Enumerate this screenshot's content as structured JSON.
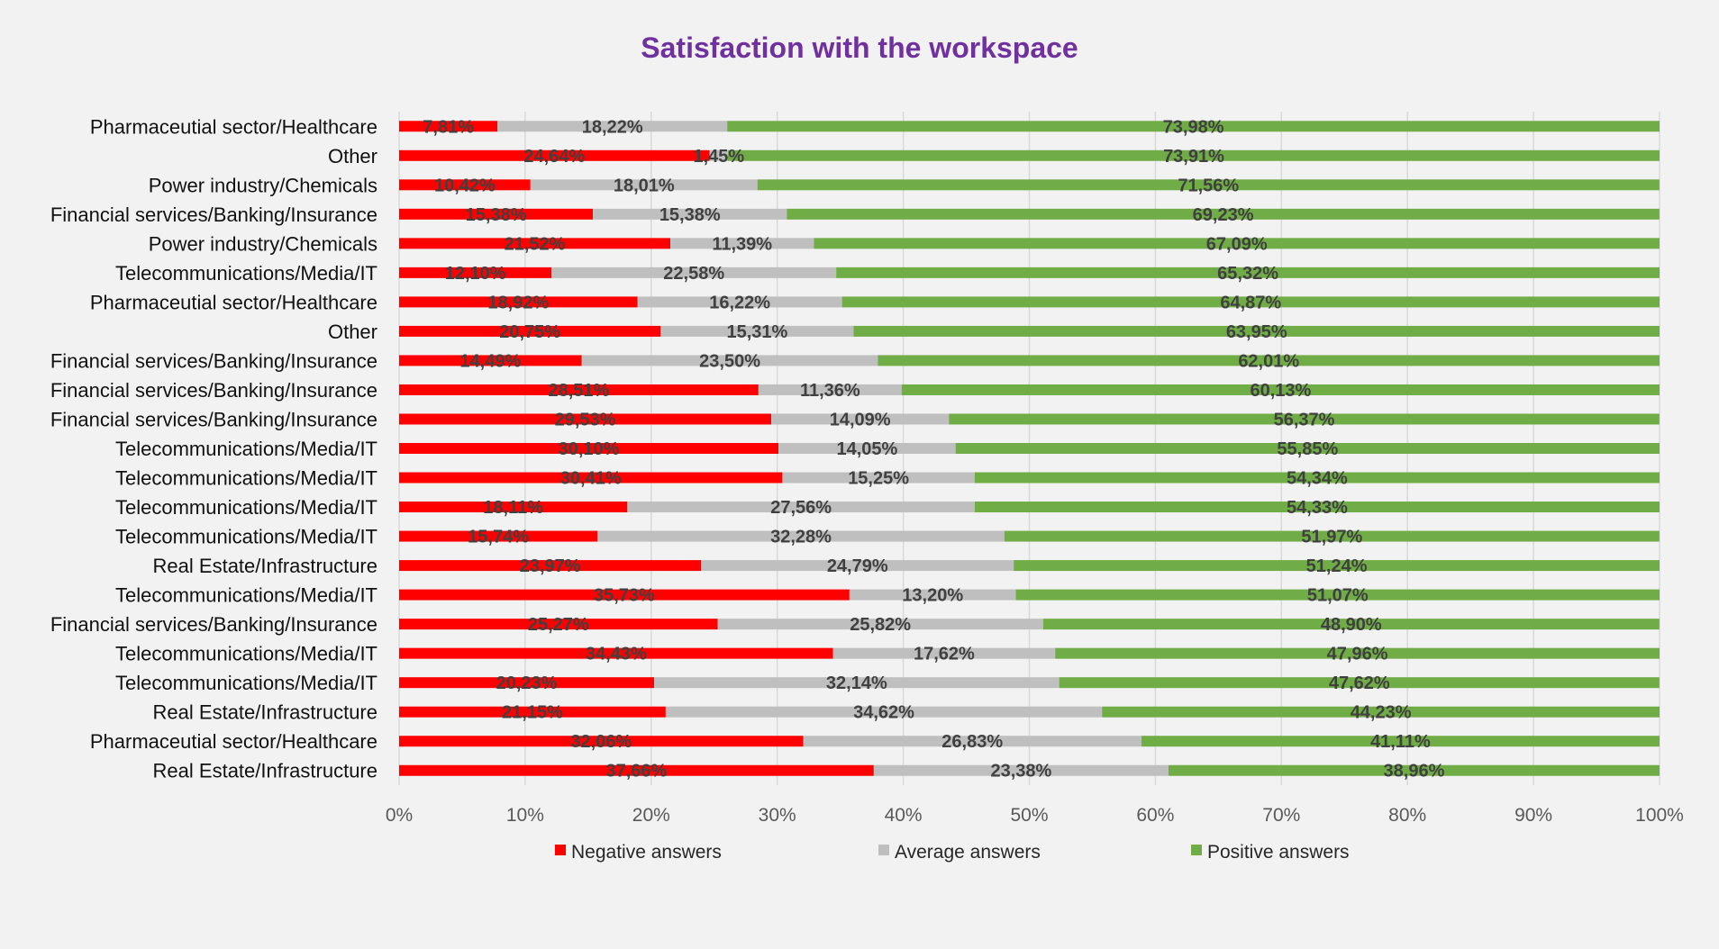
{
  "chart_data": {
    "type": "bar",
    "orientation": "horizontal",
    "stacked": "percent",
    "title": "Satisfaction with the workspace",
    "categories": [
      "Pharmaceutial sector/Healthcare",
      "Other",
      "Power industry/Chemicals",
      "Financial services/Banking/Insurance",
      "Power industry/Chemicals",
      "Telecommunications/Media/IT",
      "Pharmaceutial sector/Healthcare",
      "Other",
      "Financial services/Banking/Insurance",
      "Financial services/Banking/Insurance",
      "Financial services/Banking/Insurance",
      "Telecommunications/Media/IT",
      "Telecommunications/Media/IT",
      "Telecommunications/Media/IT",
      "Telecommunications/Media/IT",
      "Real Estate/Infrastructure",
      "Telecommunications/Media/IT",
      "Financial services/Banking/Insurance",
      "Telecommunications/Media/IT",
      "Telecommunications/Media/IT",
      "Real Estate/Infrastructure",
      "Pharmaceutial sector/Healthcare",
      "Real Estate/Infrastructure"
    ],
    "series": [
      {
        "name": "Negative answers",
        "color": "#ff0000",
        "values": [
          7.81,
          24.64,
          10.42,
          15.38,
          21.52,
          12.1,
          18.92,
          20.75,
          14.49,
          28.51,
          29.53,
          30.1,
          30.41,
          18.11,
          15.74,
          23.97,
          35.73,
          25.27,
          34.43,
          20.23,
          21.15,
          32.06,
          37.66
        ],
        "labels": [
          "7,81%",
          "24,64%",
          "10,42%",
          "15,38%",
          "21,52%",
          "12,10%",
          "18,92%",
          "20,75%",
          "14,49%",
          "28,51%",
          "29,53%",
          "30,10%",
          "30,41%",
          "18,11%",
          "15,74%",
          "23,97%",
          "35,73%",
          "25,27%",
          "34,43%",
          "20,23%",
          "21,15%",
          "32,06%",
          "37,66%"
        ]
      },
      {
        "name": "Average answers",
        "color": "#bfbfbf",
        "values": [
          18.22,
          1.45,
          18.01,
          15.38,
          11.39,
          22.58,
          16.22,
          15.31,
          23.5,
          11.36,
          14.09,
          14.05,
          15.25,
          27.56,
          32.28,
          24.79,
          13.2,
          25.82,
          17.62,
          32.14,
          34.62,
          26.83,
          23.38
        ],
        "labels": [
          "18,22%",
          "1,45%",
          "18,01%",
          "15,38%",
          "11,39%",
          "22,58%",
          "16,22%",
          "15,31%",
          "23,50%",
          "11,36%",
          "14,09%",
          "14,05%",
          "15,25%",
          "27,56%",
          "32,28%",
          "24,79%",
          "13,20%",
          "25,82%",
          "17,62%",
          "32,14%",
          "34,62%",
          "26,83%",
          "23,38%"
        ]
      },
      {
        "name": "Positive answers",
        "color": "#70ad47",
        "values": [
          73.98,
          73.91,
          71.56,
          69.23,
          67.09,
          65.32,
          64.87,
          63.95,
          62.01,
          60.13,
          56.37,
          55.85,
          54.34,
          54.33,
          51.97,
          51.24,
          51.07,
          48.9,
          47.96,
          47.62,
          44.23,
          41.11,
          38.96
        ],
        "labels": [
          "73,98%",
          "73,91%",
          "71,56%",
          "69,23%",
          "67,09%",
          "65,32%",
          "64,87%",
          "63,95%",
          "62,01%",
          "60,13%",
          "56,37%",
          "55,85%",
          "54,34%",
          "54,33%",
          "51,97%",
          "51,24%",
          "51,07%",
          "48,90%",
          "47,96%",
          "47,62%",
          "44,23%",
          "41,11%",
          "38,96%"
        ]
      }
    ],
    "xlim": [
      0,
      100
    ],
    "xticks": [
      "0%",
      "10%",
      "20%",
      "30%",
      "40%",
      "50%",
      "60%",
      "70%",
      "80%",
      "90%",
      "100%"
    ],
    "grid": "vertical",
    "legend_position": "bottom"
  }
}
